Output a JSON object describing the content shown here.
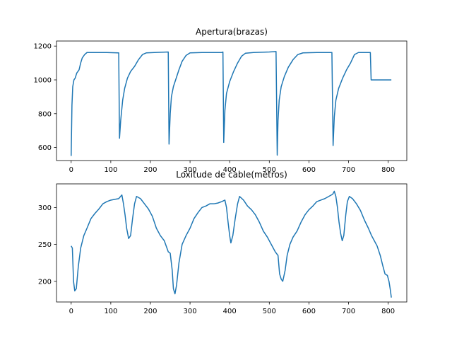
{
  "chart_data": [
    {
      "type": "line",
      "title": "Apertura(brazas)",
      "xlabel": "",
      "ylabel": "",
      "xlim": [
        -37,
        847
      ],
      "ylim": [
        523,
        1230
      ],
      "xticks": [
        0,
        100,
        200,
        300,
        400,
        500,
        600,
        700,
        800
      ],
      "yticks": [
        600,
        800,
        1000,
        1200
      ],
      "grid": false,
      "color": "#1f77b4",
      "series": [
        {
          "name": "",
          "points": [
            [
              0,
              550
            ],
            [
              2,
              850
            ],
            [
              4,
              960
            ],
            [
              7,
              1000
            ],
            [
              10,
              1010
            ],
            [
              14,
              1040
            ],
            [
              20,
              1060
            ],
            [
              24,
              1100
            ],
            [
              28,
              1130
            ],
            [
              34,
              1150
            ],
            [
              40,
              1162
            ],
            [
              60,
              1162
            ],
            [
              90,
              1162
            ],
            [
              118,
              1160
            ],
            [
              120,
              1160
            ],
            [
              122,
              655
            ],
            [
              125,
              760
            ],
            [
              130,
              880
            ],
            [
              135,
              950
            ],
            [
              142,
              1010
            ],
            [
              150,
              1050
            ],
            [
              160,
              1080
            ],
            [
              170,
              1120
            ],
            [
              180,
              1150
            ],
            [
              190,
              1160
            ],
            [
              210,
              1162
            ],
            [
              245,
              1165
            ],
            [
              247,
              620
            ],
            [
              250,
              800
            ],
            [
              253,
              900
            ],
            [
              258,
              960
            ],
            [
              265,
              1010
            ],
            [
              272,
              1060
            ],
            [
              280,
              1110
            ],
            [
              290,
              1145
            ],
            [
              300,
              1160
            ],
            [
              330,
              1162
            ],
            [
              380,
              1162
            ],
            [
              383,
              1165
            ],
            [
              385,
              630
            ],
            [
              388,
              820
            ],
            [
              392,
              920
            ],
            [
              400,
              990
            ],
            [
              410,
              1050
            ],
            [
              420,
              1100
            ],
            [
              430,
              1140
            ],
            [
              440,
              1158
            ],
            [
              460,
              1162
            ],
            [
              500,
              1165
            ],
            [
              517,
              1168
            ],
            [
              520,
              555
            ],
            [
              522,
              760
            ],
            [
              525,
              880
            ],
            [
              530,
              960
            ],
            [
              538,
              1020
            ],
            [
              548,
              1075
            ],
            [
              560,
              1120
            ],
            [
              572,
              1150
            ],
            [
              585,
              1160
            ],
            [
              620,
              1162
            ],
            [
              658,
              1162
            ],
            [
              661,
              612
            ],
            [
              664,
              780
            ],
            [
              668,
              880
            ],
            [
              675,
              950
            ],
            [
              685,
              1010
            ],
            [
              695,
              1060
            ],
            [
              705,
              1100
            ],
            [
              715,
              1150
            ],
            [
              725,
              1162
            ],
            [
              755,
              1162
            ],
            [
              757,
              1000
            ],
            [
              780,
              1000
            ],
            [
              808,
              1000
            ]
          ]
        }
      ]
    },
    {
      "type": "line",
      "title": "Loxitude de cable(metros)",
      "xlabel": "",
      "ylabel": "",
      "xlim": [
        -37,
        847
      ],
      "ylim": [
        172,
        332
      ],
      "xticks": [
        0,
        100,
        200,
        300,
        400,
        500,
        600,
        700,
        800
      ],
      "yticks": [
        200,
        250,
        300
      ],
      "grid": false,
      "color": "#1f77b4",
      "series": [
        {
          "name": "",
          "points": [
            [
              0,
              248
            ],
            [
              3,
              245
            ],
            [
              6,
              200
            ],
            [
              9,
              187
            ],
            [
              13,
              190
            ],
            [
              18,
              220
            ],
            [
              24,
              245
            ],
            [
              32,
              262
            ],
            [
              40,
              272
            ],
            [
              50,
              285
            ],
            [
              60,
              292
            ],
            [
              70,
              298
            ],
            [
              80,
              305
            ],
            [
              90,
              308
            ],
            [
              100,
              310
            ],
            [
              110,
              311
            ],
            [
              120,
              312
            ],
            [
              128,
              317
            ],
            [
              132,
              305
            ],
            [
              136,
              290
            ],
            [
              140,
              272
            ],
            [
              145,
              258
            ],
            [
              150,
              262
            ],
            [
              155,
              285
            ],
            [
              160,
              305
            ],
            [
              165,
              315
            ],
            [
              175,
              312
            ],
            [
              185,
              305
            ],
            [
              195,
              298
            ],
            [
              205,
              288
            ],
            [
              215,
              272
            ],
            [
              225,
              262
            ],
            [
              235,
              255
            ],
            [
              245,
              240
            ],
            [
              250,
              238
            ],
            [
              255,
              215
            ],
            [
              258,
              190
            ],
            [
              262,
              183
            ],
            [
              266,
              195
            ],
            [
              272,
              225
            ],
            [
              280,
              250
            ],
            [
              290,
              262
            ],
            [
              300,
              272
            ],
            [
              310,
              285
            ],
            [
              320,
              293
            ],
            [
              330,
              300
            ],
            [
              340,
              302
            ],
            [
              350,
              305
            ],
            [
              360,
              305
            ],
            [
              370,
              306
            ],
            [
              380,
              308
            ],
            [
              388,
              310
            ],
            [
              392,
              300
            ],
            [
              396,
              280
            ],
            [
              400,
              262
            ],
            [
              403,
              252
            ],
            [
              408,
              262
            ],
            [
              414,
              285
            ],
            [
              420,
              305
            ],
            [
              425,
              315
            ],
            [
              435,
              310
            ],
            [
              445,
              302
            ],
            [
              455,
              297
            ],
            [
              465,
              290
            ],
            [
              475,
              280
            ],
            [
              485,
              268
            ],
            [
              495,
              260
            ],
            [
              505,
              250
            ],
            [
              515,
              240
            ],
            [
              522,
              235
            ],
            [
              526,
              210
            ],
            [
              530,
              203
            ],
            [
              534,
              200
            ],
            [
              540,
              215
            ],
            [
              545,
              235
            ],
            [
              552,
              250
            ],
            [
              560,
              260
            ],
            [
              570,
              268
            ],
            [
              580,
              280
            ],
            [
              590,
              290
            ],
            [
              600,
              297
            ],
            [
              610,
              302
            ],
            [
              620,
              308
            ],
            [
              630,
              310
            ],
            [
              640,
              312
            ],
            [
              650,
              315
            ],
            [
              660,
              318
            ],
            [
              664,
              322
            ],
            [
              668,
              315
            ],
            [
              672,
              300
            ],
            [
              676,
              280
            ],
            [
              680,
              265
            ],
            [
              684,
              255
            ],
            [
              688,
              262
            ],
            [
              693,
              290
            ],
            [
              697,
              308
            ],
            [
              702,
              315
            ],
            [
              710,
              312
            ],
            [
              720,
              305
            ],
            [
              730,
              296
            ],
            [
              740,
              283
            ],
            [
              750,
              272
            ],
            [
              758,
              262
            ],
            [
              765,
              255
            ],
            [
              772,
              248
            ],
            [
              780,
              235
            ],
            [
              786,
              222
            ],
            [
              792,
              210
            ],
            [
              798,
              208
            ],
            [
              802,
              200
            ],
            [
              805,
              190
            ],
            [
              808,
              178
            ]
          ]
        }
      ]
    }
  ]
}
